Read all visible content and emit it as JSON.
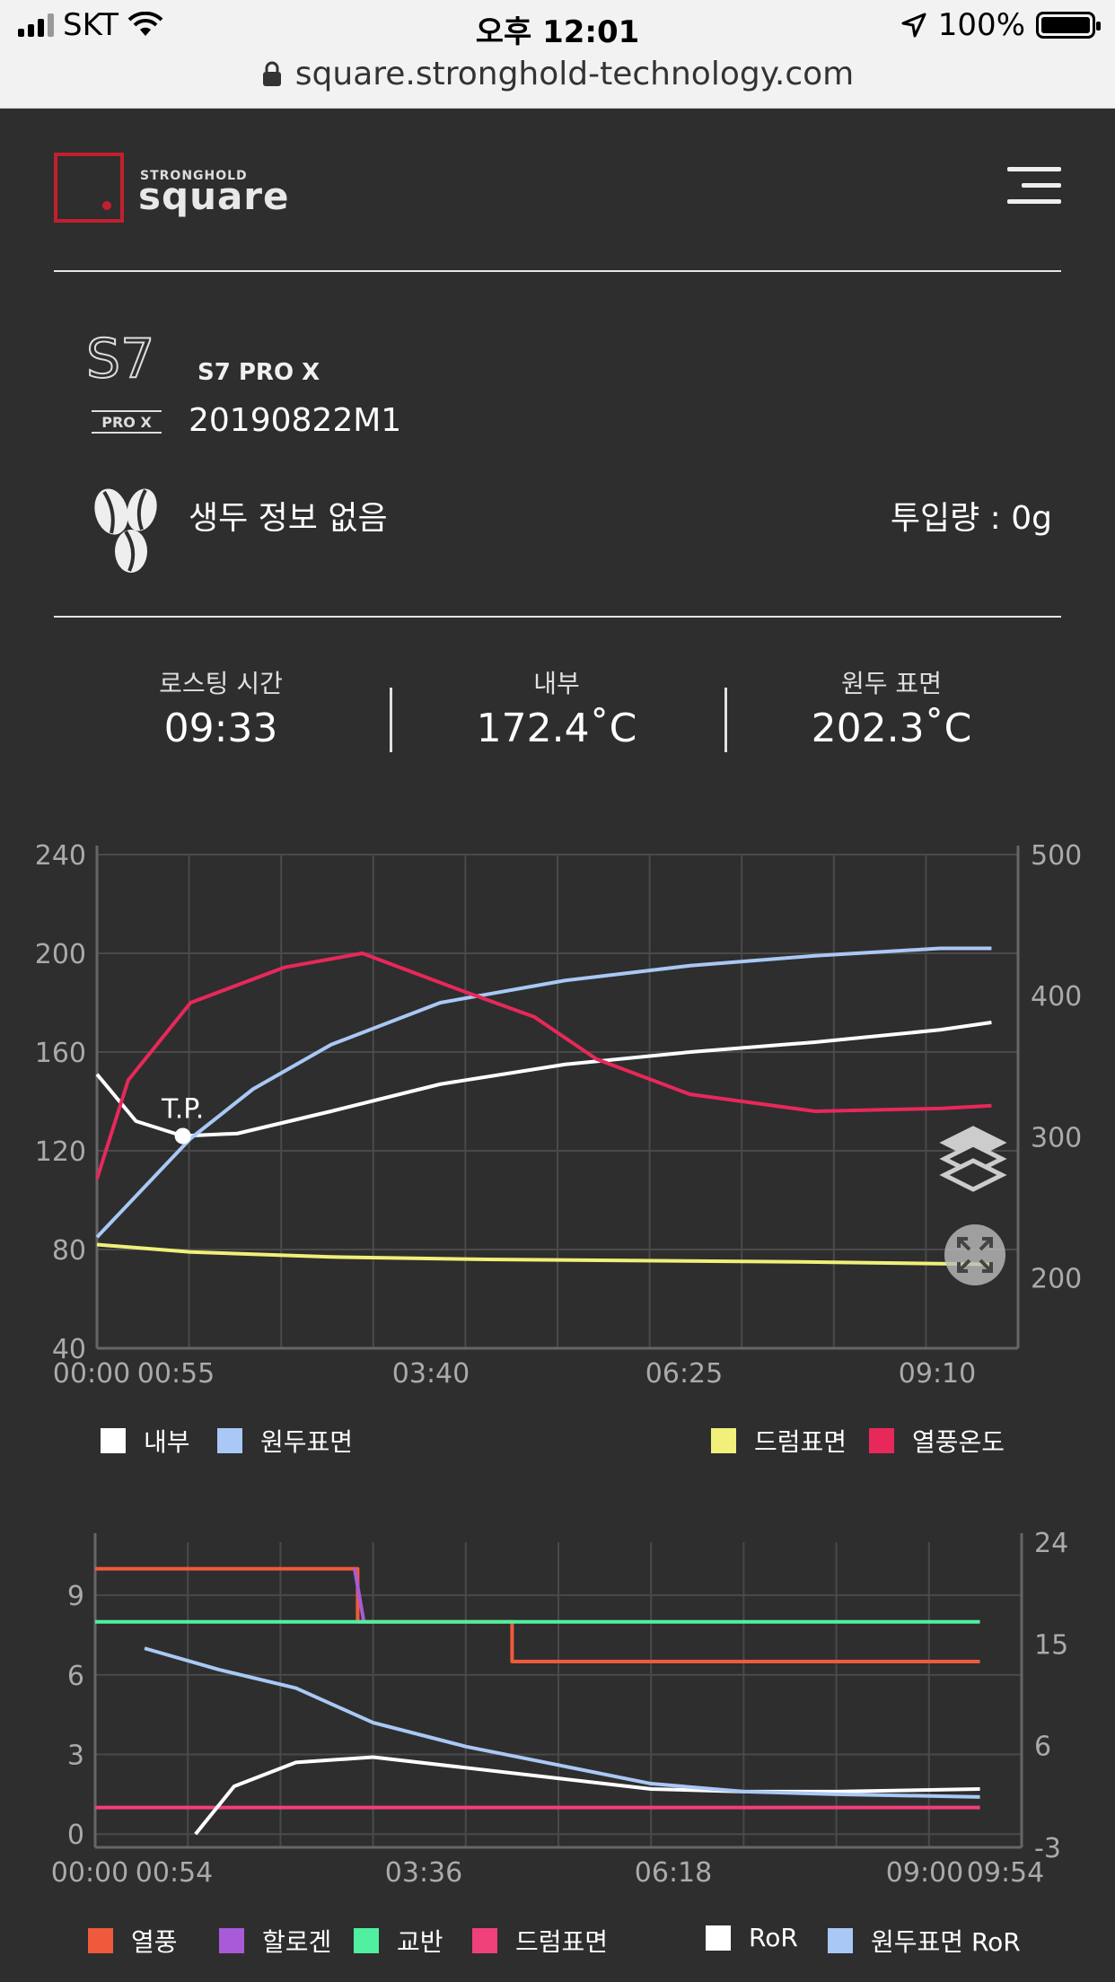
{
  "status_bar": {
    "carrier": "SKT",
    "time": "오후 12:01",
    "battery": "100%"
  },
  "url": "square.stronghold-technology.com",
  "logo": {
    "small": "STRONGHOLD",
    "main": "square"
  },
  "device": {
    "model": "S7 PRO X",
    "serial": "20190822M1",
    "logo_text": "PRO X"
  },
  "bean": {
    "info": "생두 정보 없음",
    "amount": "투입량 : 0g"
  },
  "stats": [
    {
      "label": "로스팅 시간",
      "value": "09:33"
    },
    {
      "label": "내부",
      "value": "172.4˚C"
    },
    {
      "label": "원두 표면",
      "value": "202.3˚C"
    }
  ],
  "colors": {
    "inner": "#ffffff",
    "bean_surface": "#a9c8f5",
    "drum_surface": "#f0f07a",
    "hot_air": "#e8285a",
    "heat": "#f05a3c",
    "halogen": "#a85ad8",
    "agitator": "#50f0a0",
    "drum_surface2": "#f0407a",
    "ror": "#ffffff",
    "bean_ror": "#a9c8f5"
  },
  "chart_data": [
    {
      "type": "line",
      "x_ticks": [
        "00:00",
        "00:55",
        "03:40",
        "06:25",
        "09:10"
      ],
      "y_left_ticks": [
        "240",
        "200",
        "160",
        "120",
        "80",
        "40"
      ],
      "y_right_ticks": [
        "500",
        "400",
        "300",
        "200"
      ],
      "ylim_left": [
        40,
        240
      ],
      "ylim_right": [
        150,
        500
      ],
      "xlim_sec": [
        0,
        590
      ],
      "annotation": "T.P.",
      "series": [
        {
          "name": "내부",
          "axis": "left",
          "x": [
            0,
            25,
            55,
            90,
            150,
            220,
            300,
            380,
            460,
            540,
            573
          ],
          "y": [
            151,
            132,
            126,
            127,
            136,
            147,
            155,
            160,
            164,
            169,
            172
          ]
        },
        {
          "name": "원두표면",
          "axis": "left",
          "x": [
            0,
            30,
            60,
            100,
            150,
            220,
            300,
            380,
            460,
            540,
            573
          ],
          "y": [
            85,
            105,
            125,
            145,
            163,
            180,
            189,
            195,
            199,
            202,
            202
          ]
        },
        {
          "name": "드럼표면",
          "axis": "left",
          "x": [
            0,
            60,
            150,
            250,
            350,
            450,
            573
          ],
          "y": [
            82,
            79,
            77,
            76,
            75.5,
            75,
            74
          ]
        },
        {
          "name": "열풍온도",
          "axis": "right",
          "x": [
            0,
            20,
            60,
            120,
            170,
            230,
            280,
            320,
            380,
            460,
            540,
            573
          ],
          "y": [
            270,
            340,
            395,
            420,
            430,
            405,
            385,
            355,
            330,
            318,
            320,
            322
          ]
        }
      ]
    },
    {
      "type": "line",
      "x_ticks": [
        "00:00",
        "00:54",
        "03:36",
        "06:18",
        "09:00",
        "09:54"
      ],
      "y_left_ticks": [
        "9",
        "6",
        "3",
        "0"
      ],
      "y_right_ticks": [
        "24",
        "15",
        "6",
        "-3"
      ],
      "ylim_left": [
        -0.5,
        11
      ],
      "ylim_right": [
        -3,
        24
      ],
      "xlim_sec": [
        0,
        600
      ],
      "series": [
        {
          "name": "열풍",
          "axis": "left",
          "x": [
            0,
            170,
            170,
            270,
            270,
            573
          ],
          "y": [
            10,
            10,
            8,
            8,
            6.5,
            6.5
          ]
        },
        {
          "name": "할로겐",
          "axis": "left",
          "x": [
            168,
            174
          ],
          "y": [
            10,
            8
          ]
        },
        {
          "name": "교반",
          "axis": "left",
          "x": [
            0,
            573
          ],
          "y": [
            8,
            8
          ]
        },
        {
          "name": "드럼표면",
          "axis": "left",
          "x": [
            0,
            573
          ],
          "y": [
            1,
            1
          ]
        },
        {
          "name": "RoR",
          "axis": "left",
          "x": [
            65,
            90,
            130,
            180,
            240,
            300,
            360,
            420,
            480,
            573
          ],
          "y": [
            0,
            1.8,
            2.7,
            2.9,
            2.5,
            2.1,
            1.7,
            1.6,
            1.6,
            1.7
          ]
        },
        {
          "name": "원두표면 RoR",
          "axis": "left",
          "x": [
            32,
            80,
            130,
            180,
            240,
            300,
            360,
            420,
            480,
            573
          ],
          "y": [
            7,
            6.2,
            5.5,
            4.2,
            3.3,
            2.6,
            1.9,
            1.6,
            1.5,
            1.4
          ]
        }
      ]
    }
  ],
  "legend1": [
    {
      "label": "내부",
      "color": "#ffffff"
    },
    {
      "label": "원두표면",
      "color": "#a9c8f5"
    },
    {
      "label": "드럼표면",
      "color": "#f0f07a"
    },
    {
      "label": "열풍온도",
      "color": "#e8285a"
    }
  ],
  "legend2": [
    {
      "label": "열풍",
      "color": "#f05a3c"
    },
    {
      "label": "할로겐",
      "color": "#a85ad8"
    },
    {
      "label": "교반",
      "color": "#50f0a0"
    },
    {
      "label": "드럼표면",
      "color": "#f0407a"
    },
    {
      "label": "RoR",
      "color": "#ffffff"
    },
    {
      "label": "원두표면 RoR",
      "color": "#a9c8f5"
    }
  ]
}
